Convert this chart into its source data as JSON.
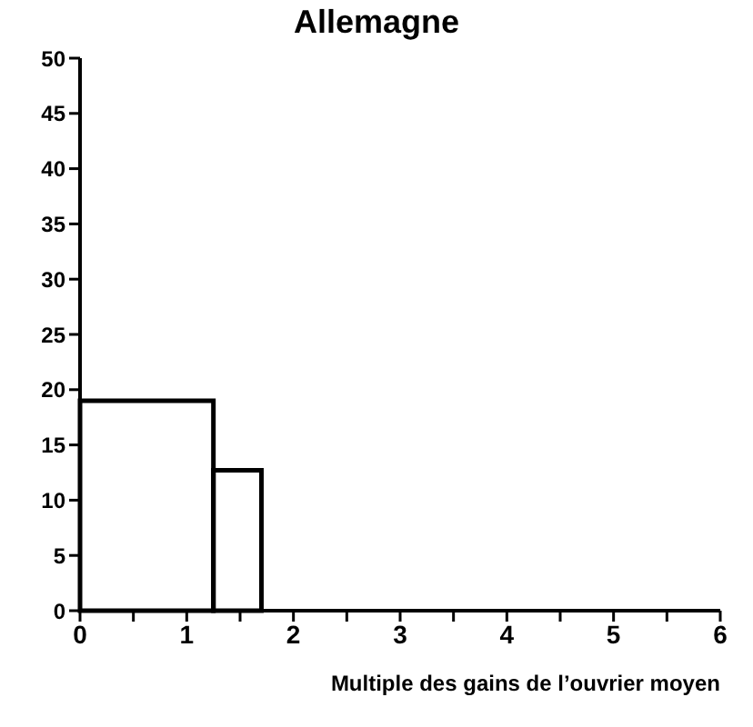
{
  "chart_data": {
    "type": "histogram",
    "title": "Allemagne",
    "xlabel": "Multiple des gains de l’ouvrier moyen",
    "bins": [
      0,
      1.25,
      1.7
    ],
    "values": [
      19,
      12.7
    ],
    "color": "#000000",
    "xlim": [
      0,
      6
    ],
    "xticks": [
      0,
      {
        "value": 0.5,
        "label": null
      },
      1,
      {
        "value": 1.5,
        "label": null
      },
      2,
      {
        "value": 2.5,
        "label": null
      },
      3,
      {
        "value": 3.5,
        "label": null
      },
      4,
      {
        "value": 4.5,
        "label": null
      },
      5,
      {
        "value": 5.5,
        "label": null
      },
      6
    ],
    "ylim": [
      0,
      50
    ],
    "yticks": [
      0,
      5,
      10,
      15,
      20,
      25,
      30,
      35,
      40,
      45,
      50
    ]
  }
}
